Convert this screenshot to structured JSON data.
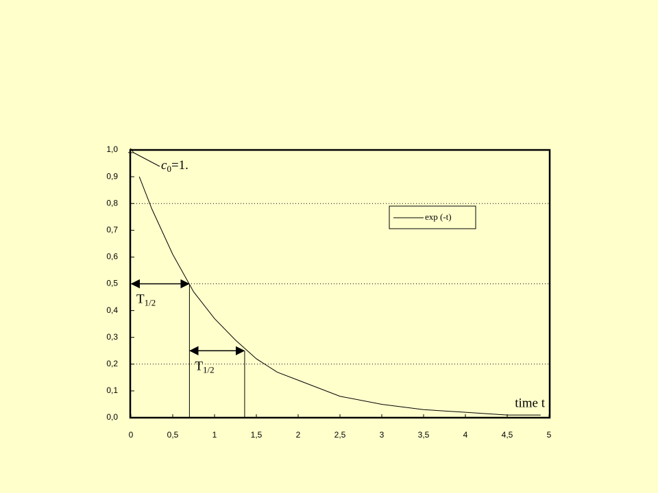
{
  "chart_data": {
    "type": "line",
    "x": [
      0.1,
      0.25,
      0.5,
      0.75,
      1,
      1.25,
      1.5,
      1.75,
      2,
      2.5,
      3,
      3.5,
      4,
      4.5,
      4.9
    ],
    "series": [
      {
        "name": "exp (-t)",
        "color": "#000000",
        "values": [
          0.9,
          0.78,
          0.61,
          0.47,
          0.37,
          0.29,
          0.22,
          0.17,
          0.14,
          0.08,
          0.05,
          0.03,
          0.02,
          0.01,
          0.01
        ]
      }
    ],
    "xlim": [
      0,
      5
    ],
    "ylim": [
      0,
      1
    ],
    "xticks": [
      0,
      {
        "value": 0.5,
        "label": "0,5"
      },
      1,
      {
        "value": 1.5,
        "label": "1,5"
      },
      2,
      {
        "value": 2.5,
        "label": "2,5"
      },
      3,
      {
        "value": 3.5,
        "label": "3,5"
      },
      4,
      {
        "value": 4.5,
        "label": "4,5"
      },
      5
    ],
    "yticks": [
      {
        "value": 0,
        "label": "0,0"
      },
      {
        "value": 0.1,
        "label": "0,1"
      },
      {
        "value": 0.2,
        "label": "0,2"
      },
      {
        "value": 0.3,
        "label": "0,3"
      },
      {
        "value": 0.4,
        "label": "0,4"
      },
      {
        "value": 0.5,
        "label": "0,5"
      },
      {
        "value": 0.6,
        "label": "0,6"
      },
      {
        "value": 0.7,
        "label": "0,7"
      },
      {
        "value": 0.8,
        "label": "0,8"
      },
      {
        "value": 0.9,
        "label": "0,9"
      },
      {
        "value": 1,
        "label": "1,0"
      }
    ],
    "xlabel": "time t",
    "hlines": [
      0.8,
      0.5,
      0.2
    ],
    "legend": "upper right",
    "annotations": [
      {
        "text": "c",
        "sub": "0",
        "after": "=1.",
        "x": 0,
        "y": 1
      },
      {
        "text": "T",
        "sub": "1/2",
        "x_start": 0,
        "x_end": 0.7,
        "y": 0.5
      },
      {
        "text": "T",
        "sub": "1/2",
        "x_start": 0.7,
        "x_end": 1.36,
        "y": 0.25
      }
    ]
  }
}
